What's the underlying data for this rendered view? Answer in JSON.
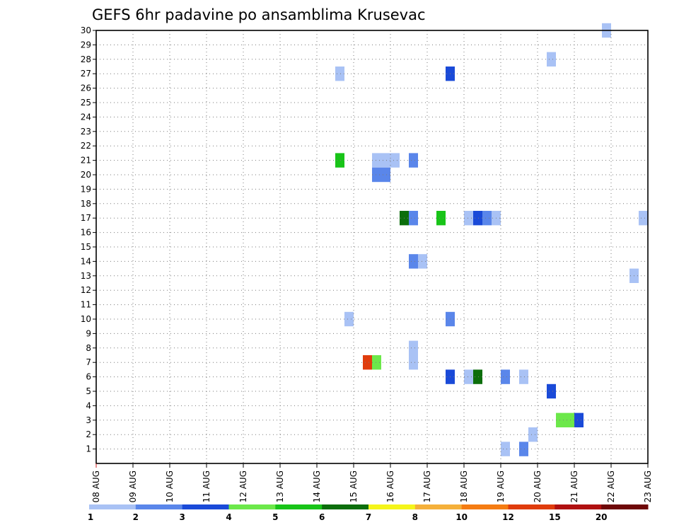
{
  "chart_data": {
    "type": "heatmap",
    "title": "GEFS 6hr padavine po ansamblima Krusevac",
    "xlabel": "",
    "ylabel": "",
    "x_ticks": [
      "08 AUG",
      "09 AUG",
      "10 AUG",
      "11 AUG",
      "12 AUG",
      "13 AUG",
      "14 AUG",
      "15 AUG",
      "16 AUG",
      "17 AUG",
      "18 AUG",
      "19 AUG",
      "20 AUG",
      "21 AUG",
      "22 AUG",
      "23 AUG"
    ],
    "xlim": [
      0,
      60
    ],
    "x_units": "6-hour steps since 08 AUG 00z",
    "y_ticks": [
      1,
      2,
      3,
      4,
      5,
      6,
      7,
      8,
      9,
      10,
      11,
      12,
      13,
      14,
      15,
      16,
      17,
      18,
      19,
      20,
      21,
      22,
      23,
      24,
      25,
      26,
      27,
      28,
      29,
      30
    ],
    "ylim": [
      0,
      30
    ],
    "grid": true,
    "colorbar": {
      "labels": [
        "1",
        "2",
        "3",
        "4",
        "5",
        "6",
        "7",
        "8",
        "10",
        "12",
        "15",
        "20"
      ],
      "colors": [
        "#a9c2f5",
        "#5a86ea",
        "#1a4ad8",
        "#6ce84a",
        "#18c418",
        "#0c6e0c",
        "#f5f51a",
        "#f5b03a",
        "#f57c12",
        "#e03c0c",
        "#b01010",
        "#6e0808"
      ]
    },
    "cells": [
      {
        "step": 27,
        "member": 27,
        "value": 1.5
      },
      {
        "step": 27,
        "member": 21,
        "value": 5.5
      },
      {
        "step": 28,
        "member": 10,
        "value": 1.5
      },
      {
        "step": 30,
        "member": 7,
        "value": 12.5
      },
      {
        "step": 31,
        "member": 7,
        "value": 4.5
      },
      {
        "step": 31,
        "member": 21,
        "value": 1.5
      },
      {
        "step": 31,
        "member": 20,
        "value": 2.5
      },
      {
        "step": 32,
        "member": 21,
        "value": 1.5
      },
      {
        "step": 32,
        "member": 20,
        "value": 2.5
      },
      {
        "step": 33,
        "member": 21,
        "value": 1.5
      },
      {
        "step": 34,
        "member": 17,
        "value": 6.5
      },
      {
        "step": 35,
        "member": 21,
        "value": 2.5
      },
      {
        "step": 35,
        "member": 17,
        "value": 2.5
      },
      {
        "step": 35,
        "member": 14,
        "value": 2.5
      },
      {
        "step": 35,
        "member": 8,
        "value": 1.5
      },
      {
        "step": 35,
        "member": 7,
        "value": 1.5
      },
      {
        "step": 36,
        "member": 14,
        "value": 1.5
      },
      {
        "step": 38,
        "member": 17,
        "value": 5.5
      },
      {
        "step": 39,
        "member": 27,
        "value": 3.5
      },
      {
        "step": 39,
        "member": 10,
        "value": 2.5
      },
      {
        "step": 39,
        "member": 6,
        "value": 3.5
      },
      {
        "step": 41,
        "member": 17,
        "value": 1.5
      },
      {
        "step": 41,
        "member": 6,
        "value": 1.5
      },
      {
        "step": 42,
        "member": 17,
        "value": 3.5
      },
      {
        "step": 42,
        "member": 6,
        "value": 6.5
      },
      {
        "step": 43,
        "member": 17,
        "value": 2.5
      },
      {
        "step": 44,
        "member": 17,
        "value": 1.5
      },
      {
        "step": 45,
        "member": 6,
        "value": 2.5
      },
      {
        "step": 45,
        "member": 1,
        "value": 1.5
      },
      {
        "step": 47,
        "member": 6,
        "value": 1.5
      },
      {
        "step": 47,
        "member": 1,
        "value": 2.5
      },
      {
        "step": 48,
        "member": 2,
        "value": 1.5
      },
      {
        "step": 50,
        "member": 28,
        "value": 1.5
      },
      {
        "step": 50,
        "member": 5,
        "value": 3.5
      },
      {
        "step": 51,
        "member": 3,
        "value": 4.5
      },
      {
        "step": 52,
        "member": 3,
        "value": 4.5
      },
      {
        "step": 53,
        "member": 3,
        "value": 3.5
      },
      {
        "step": 56,
        "member": 30,
        "value": 1.5
      },
      {
        "step": 59,
        "member": 13,
        "value": 1.5
      },
      {
        "step": 60,
        "member": 17,
        "value": 1.5
      }
    ]
  }
}
